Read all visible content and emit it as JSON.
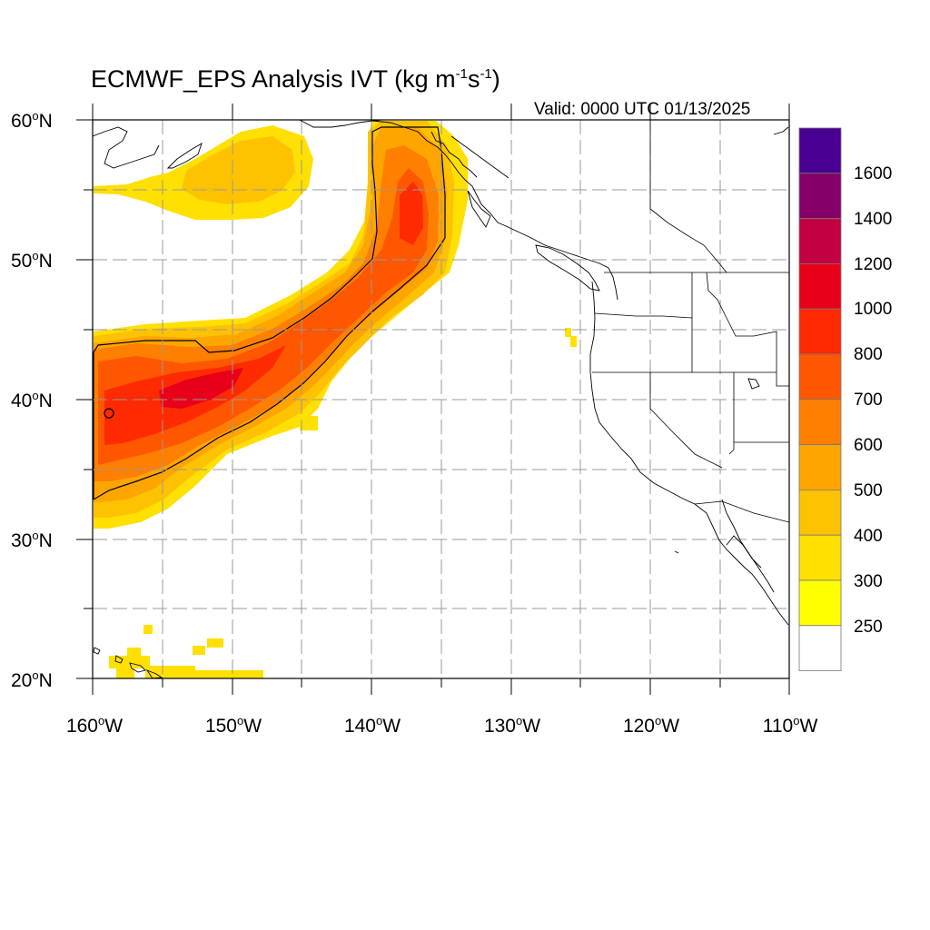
{
  "title": {
    "main": "ECMWF_EPS Analysis IVT (kg m",
    "exp1": "-1",
    "mid": "s",
    "exp2": "-1",
    "close": ")"
  },
  "valid_text": "Valid: 0000 UTC 01/13/2025",
  "lat_labels": [
    {
      "deg": "60",
      "hemi": "N"
    },
    {
      "deg": "50",
      "hemi": "N"
    },
    {
      "deg": "40",
      "hemi": "N"
    },
    {
      "deg": "30",
      "hemi": "N"
    },
    {
      "deg": "20",
      "hemi": "N"
    }
  ],
  "lon_labels": [
    {
      "deg": "160",
      "hemi": "W"
    },
    {
      "deg": "150",
      "hemi": "W"
    },
    {
      "deg": "140",
      "hemi": "W"
    },
    {
      "deg": "130",
      "hemi": "W"
    },
    {
      "deg": "120",
      "hemi": "W"
    },
    {
      "deg": "110",
      "hemi": "W"
    }
  ],
  "colorbar": {
    "labels": [
      "1600",
      "1400",
      "1200",
      "1000",
      "800",
      "700",
      "600",
      "500",
      "400",
      "300",
      "250"
    ],
    "colors_top_to_bottom": [
      "#4b0094",
      "#850068",
      "#c20042",
      "#e8001a",
      "#ff2a00",
      "#ff5700",
      "#ff7f00",
      "#ffa500",
      "#ffc200",
      "#ffe000",
      "#ffff00",
      "#ffffff"
    ]
  },
  "map": {
    "region": "Northeast Pacific and western North America",
    "lon_range": [
      -160,
      -110
    ],
    "lat_range": [
      20,
      60
    ],
    "gridline_style": "dashed gray every 5 degrees",
    "contour_level": 500,
    "ivt_features": [
      {
        "name": "atmospheric river",
        "from": "near 36N 160W",
        "to": "Gulf of Alaska near 56N 136W",
        "core_max": "about 900 kg/m/s near 40N 152W"
      },
      {
        "name": "moisture arc",
        "location": "55-59N 145-158W",
        "range": "250-500"
      },
      {
        "name": "subtropical patch",
        "location": "near 20-22N 150-158W",
        "range": "250-300"
      }
    ]
  }
}
